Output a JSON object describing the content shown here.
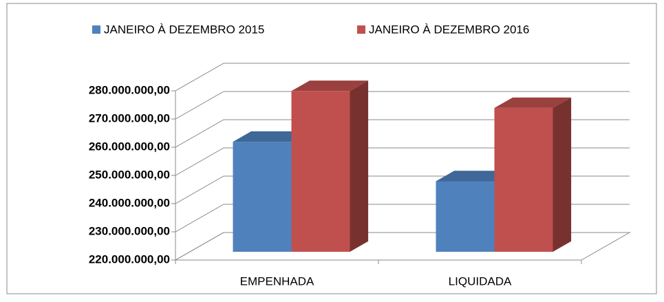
{
  "chart_data": {
    "type": "bar3d",
    "categories": [
      "EMPENHADA",
      "LIQUIDADA"
    ],
    "series": [
      {
        "name": "JANEIRO À DEZEMBRO 2015",
        "color": "#4f81bd",
        "values": [
          259000000,
          245000000
        ]
      },
      {
        "name": "JANEIRO À DEZEMBRO 2016",
        "color": "#c0504d",
        "values": [
          277000000,
          271000000
        ]
      }
    ],
    "ylim": [
      220000000,
      280000000
    ],
    "yticks": [
      {
        "value": 220000000,
        "label": "220.000.000,00"
      },
      {
        "value": 230000000,
        "label": "230.000.000,00"
      },
      {
        "value": 240000000,
        "label": "240.000.000,00"
      },
      {
        "value": 250000000,
        "label": "250.000.000,00"
      },
      {
        "value": 260000000,
        "label": "260.000.000,00"
      },
      {
        "value": 270000000,
        "label": "270.000.000,00"
      },
      {
        "value": 280000000,
        "label": "280.000.000,00"
      }
    ],
    "grid": true,
    "legend": "top"
  }
}
